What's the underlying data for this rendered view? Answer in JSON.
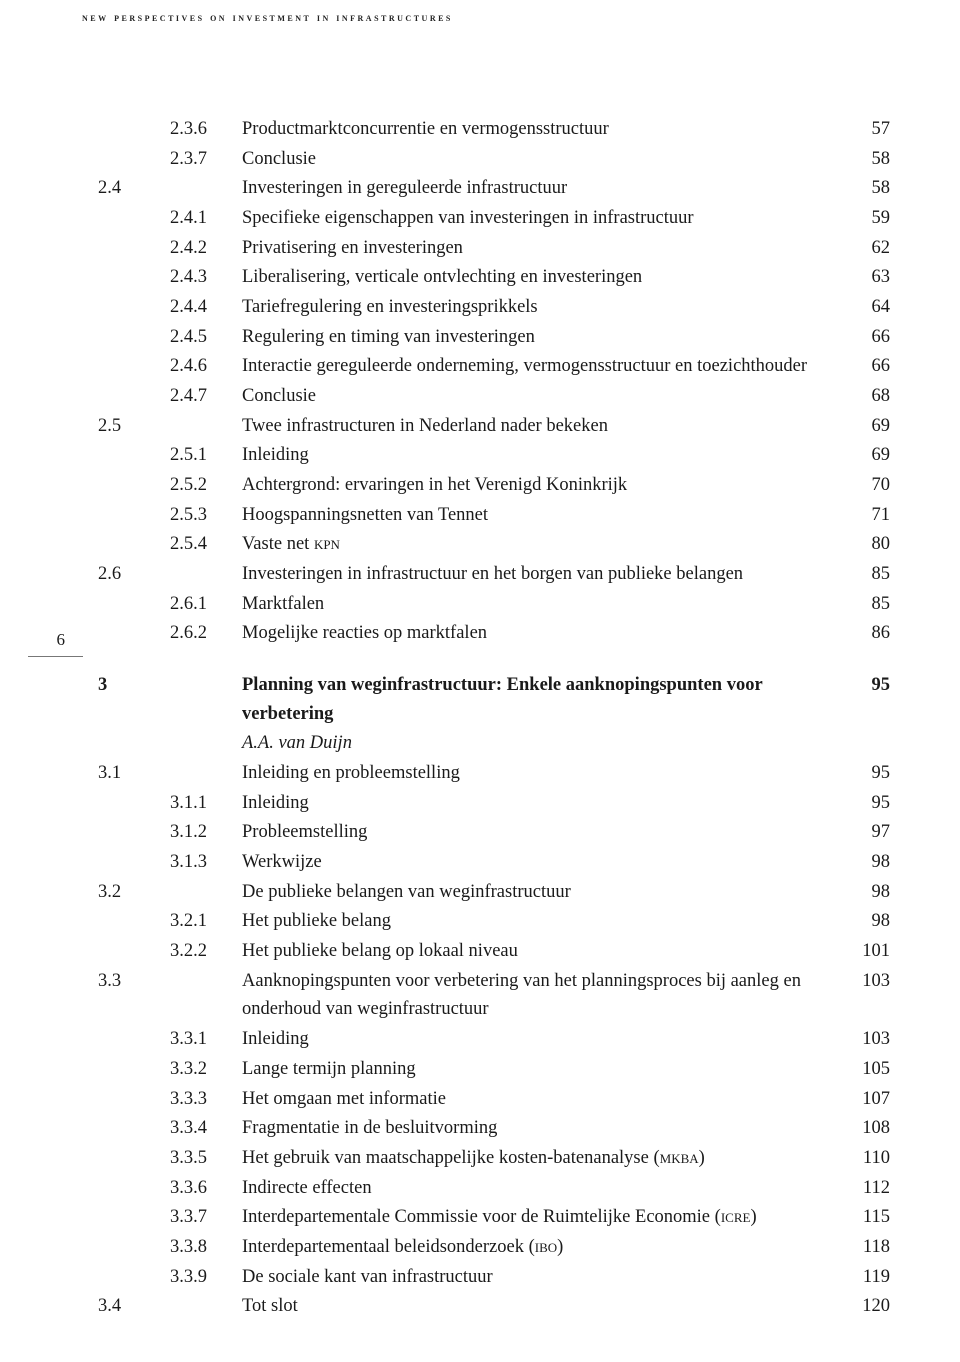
{
  "header": "new perspectives on investment in infrastructures",
  "page_number": "6",
  "entries": [
    {
      "num": "2.3.6",
      "title": "Productmarktconcurrentie en vermogensstructuur",
      "page": "57",
      "level": "sub"
    },
    {
      "num": "2.3.7",
      "title": "Conclusie",
      "page": "58",
      "level": "sub"
    },
    {
      "num": "2.4",
      "title": "Investeringen in gereguleerde infrastructuur",
      "page": "58",
      "level": "section"
    },
    {
      "num": "2.4.1",
      "title": "Specifieke eigenschappen van investeringen in infrastructuur",
      "page": "59",
      "level": "sub"
    },
    {
      "num": "2.4.2",
      "title": "Privatisering en investeringen",
      "page": "62",
      "level": "sub"
    },
    {
      "num": "2.4.3",
      "title": "Liberalisering, verticale ontvlechting en investeringen",
      "page": "63",
      "level": "sub"
    },
    {
      "num": "2.4.4",
      "title": "Tariefregulering en investeringsprikkels",
      "page": "64",
      "level": "sub"
    },
    {
      "num": "2.4.5",
      "title": "Regulering en timing van investeringen",
      "page": "66",
      "level": "sub"
    },
    {
      "num": "2.4.6",
      "title": "Interactie gereguleerde onderneming, vermogensstructuur en toezichthouder",
      "page": "66",
      "level": "sub"
    },
    {
      "num": "2.4.7",
      "title": "Conclusie",
      "page": "68",
      "level": "sub"
    },
    {
      "num": "2.5",
      "title": "Twee infrastructuren in Nederland nader bekeken",
      "page": "69",
      "level": "section"
    },
    {
      "num": "2.5.1",
      "title": "Inleiding",
      "page": "69",
      "level": "sub"
    },
    {
      "num": "2.5.2",
      "title": "Achtergrond: ervaringen in het Verenigd Koninkrijk",
      "page": "70",
      "level": "sub"
    },
    {
      "num": "2.5.3",
      "title": "Hoogspanningsnetten van Tennet",
      "page": "71",
      "level": "sub"
    },
    {
      "num": "2.5.4",
      "title_html": "Vaste net <span class='sc'>kpn</span>",
      "page": "80",
      "level": "sub"
    },
    {
      "num": "2.6",
      "title": "Investeringen in infrastructuur en het borgen van publieke belangen",
      "page": "85",
      "level": "section"
    },
    {
      "num": "2.6.1",
      "title": "Marktfalen",
      "page": "85",
      "level": "sub"
    },
    {
      "num": "2.6.2",
      "title": "Mogelijke reacties op marktfalen",
      "page": "86",
      "level": "sub"
    },
    {
      "gap": true
    },
    {
      "num": "3",
      "title": "Planning van weginfrastructuur: Enkele aanknopingspunten voor verbetering",
      "page": "95",
      "level": "section",
      "bold": true
    },
    {
      "num": "",
      "title": "A.A. van Duijn",
      "page": "",
      "level": "sub",
      "italic": true
    },
    {
      "num": "3.1",
      "title": "Inleiding en probleemstelling",
      "page": "95",
      "level": "section"
    },
    {
      "num": "3.1.1",
      "title": "Inleiding",
      "page": "95",
      "level": "sub"
    },
    {
      "num": "3.1.2",
      "title": "Probleemstelling",
      "page": "97",
      "level": "sub"
    },
    {
      "num": "3.1.3",
      "title": "Werkwijze",
      "page": "98",
      "level": "sub"
    },
    {
      "num": "3.2",
      "title": "De publieke belangen van weginfrastructuur",
      "page": "98",
      "level": "section"
    },
    {
      "num": "3.2.1",
      "title": "Het publieke belang",
      "page": "98",
      "level": "sub"
    },
    {
      "num": "3.2.2",
      "title": "Het publieke belang op lokaal niveau",
      "page": "101",
      "level": "sub"
    },
    {
      "num": "3.3",
      "title": "Aanknopingspunten voor verbetering van het planningsproces bij aanleg en onderhoud van weginfrastructuur",
      "page": "103",
      "level": "section"
    },
    {
      "num": "3.3.1",
      "title": "Inleiding",
      "page": "103",
      "level": "sub"
    },
    {
      "num": "3.3.2",
      "title": "Lange termijn planning",
      "page": "105",
      "level": "sub"
    },
    {
      "num": "3.3.3",
      "title": "Het omgaan met informatie",
      "page": "107",
      "level": "sub"
    },
    {
      "num": "3.3.4",
      "title": "Fragmentatie in de besluitvorming",
      "page": "108",
      "level": "sub"
    },
    {
      "num": "3.3.5",
      "title_html": "Het gebruik van maatschappelijke kosten-batenanalyse (<span class='sc'>mkba</span>)",
      "page": "110",
      "level": "sub"
    },
    {
      "num": "3.3.6",
      "title": "Indirecte effecten",
      "page": "112",
      "level": "sub"
    },
    {
      "num": "3.3.7",
      "title_html": "Interdepartementale Commissie voor de Ruimtelijke Economie (<span class='sc'>icre</span>)",
      "page": "115",
      "level": "sub"
    },
    {
      "num": "3.3.8",
      "title_html": "Interdepartementaal beleidsonderzoek (<span class='sc'>ibo</span>)",
      "page": "118",
      "level": "sub"
    },
    {
      "num": "3.3.9",
      "title": "De sociale kant van infrastructuur",
      "page": "119",
      "level": "sub"
    },
    {
      "num": "3.4",
      "title": "Tot slot",
      "page": "120",
      "level": "section"
    }
  ]
}
